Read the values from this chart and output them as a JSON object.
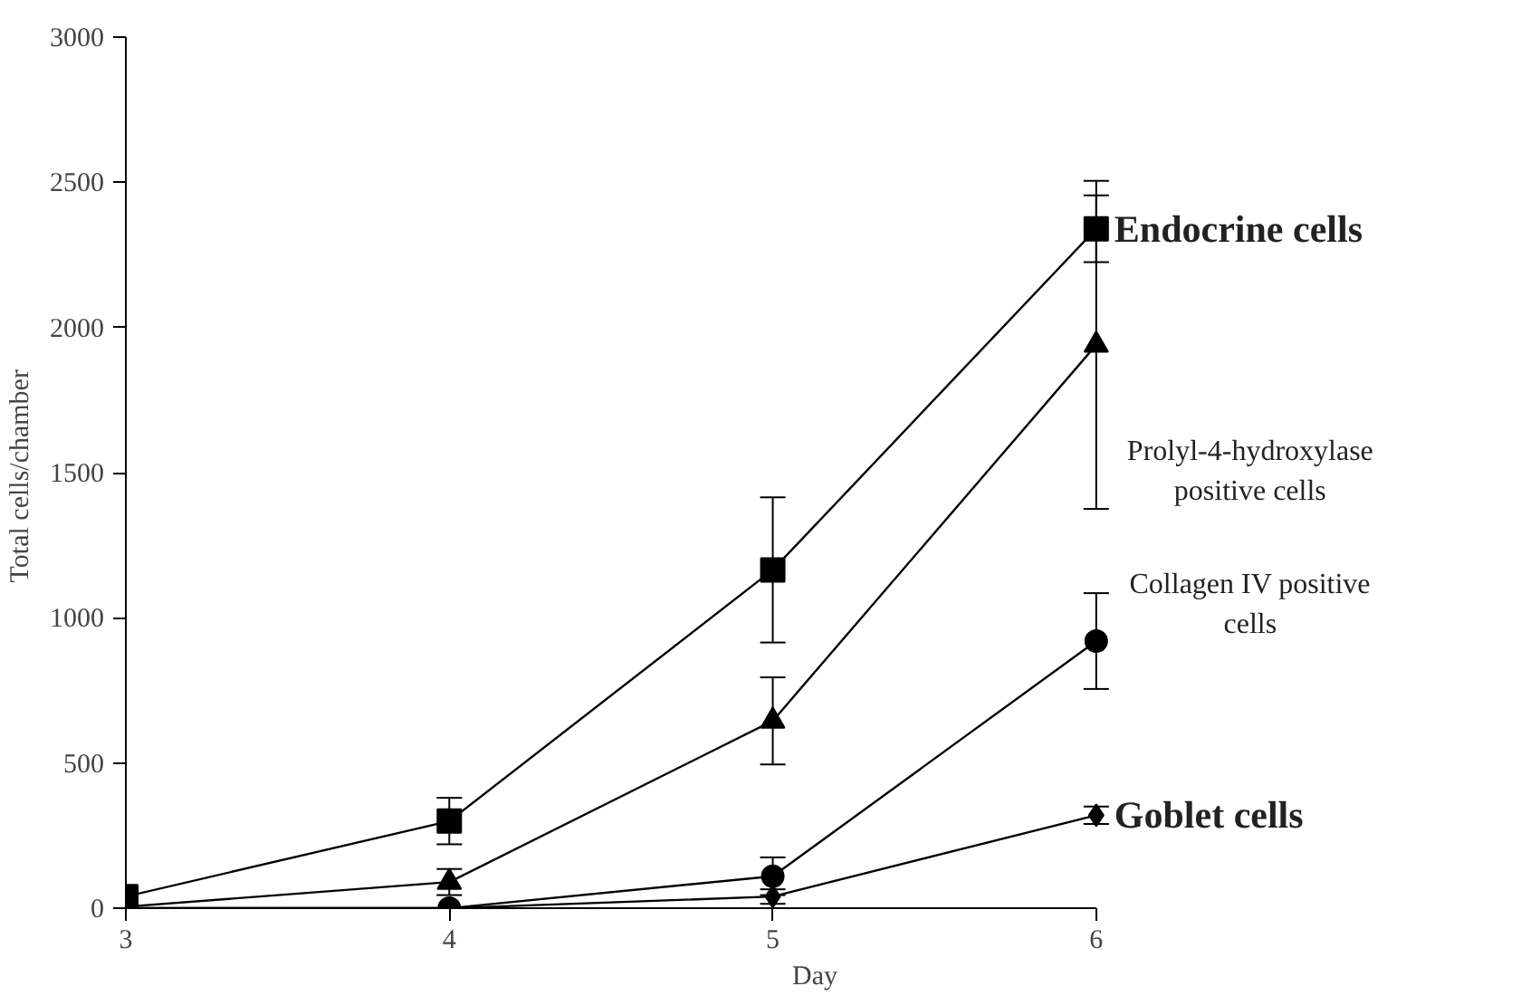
{
  "chart_data": {
    "type": "line",
    "xlabel": "Day",
    "ylabel": "Total  cells/chamber",
    "x": [
      3,
      4,
      5,
      6
    ],
    "xlim": [
      3,
      6
    ],
    "xticks": [
      3,
      4,
      5,
      6
    ],
    "ylim": [
      0,
      3000
    ],
    "yticks": [
      0,
      500,
      1000,
      1500,
      2000,
      2500,
      3000
    ],
    "grid": false,
    "series": [
      {
        "name": "Endocrine cells",
        "color": "#000000",
        "marker": "square",
        "values": [
          40,
          300,
          1165,
          2340
        ],
        "errors": [
          null,
          80,
          250,
          115
        ]
      },
      {
        "name": "Prolyl-4-hydroxylase\npositive cells",
        "color": "#000000",
        "marker": "triangle",
        "values": [
          5,
          90,
          645,
          1940
        ],
        "errors": [
          null,
          45,
          150,
          565
        ]
      },
      {
        "name": "Collagen IV positive\ncells",
        "color": "#000000",
        "marker": "circle",
        "values": [
          0,
          0,
          110,
          920
        ],
        "errors": [
          null,
          null,
          65,
          165
        ]
      },
      {
        "name": "Goblet cells",
        "color": "#000000",
        "marker": "diamond",
        "values": [
          0,
          0,
          40,
          320
        ],
        "errors": [
          null,
          null,
          25,
          30
        ]
      }
    ]
  }
}
